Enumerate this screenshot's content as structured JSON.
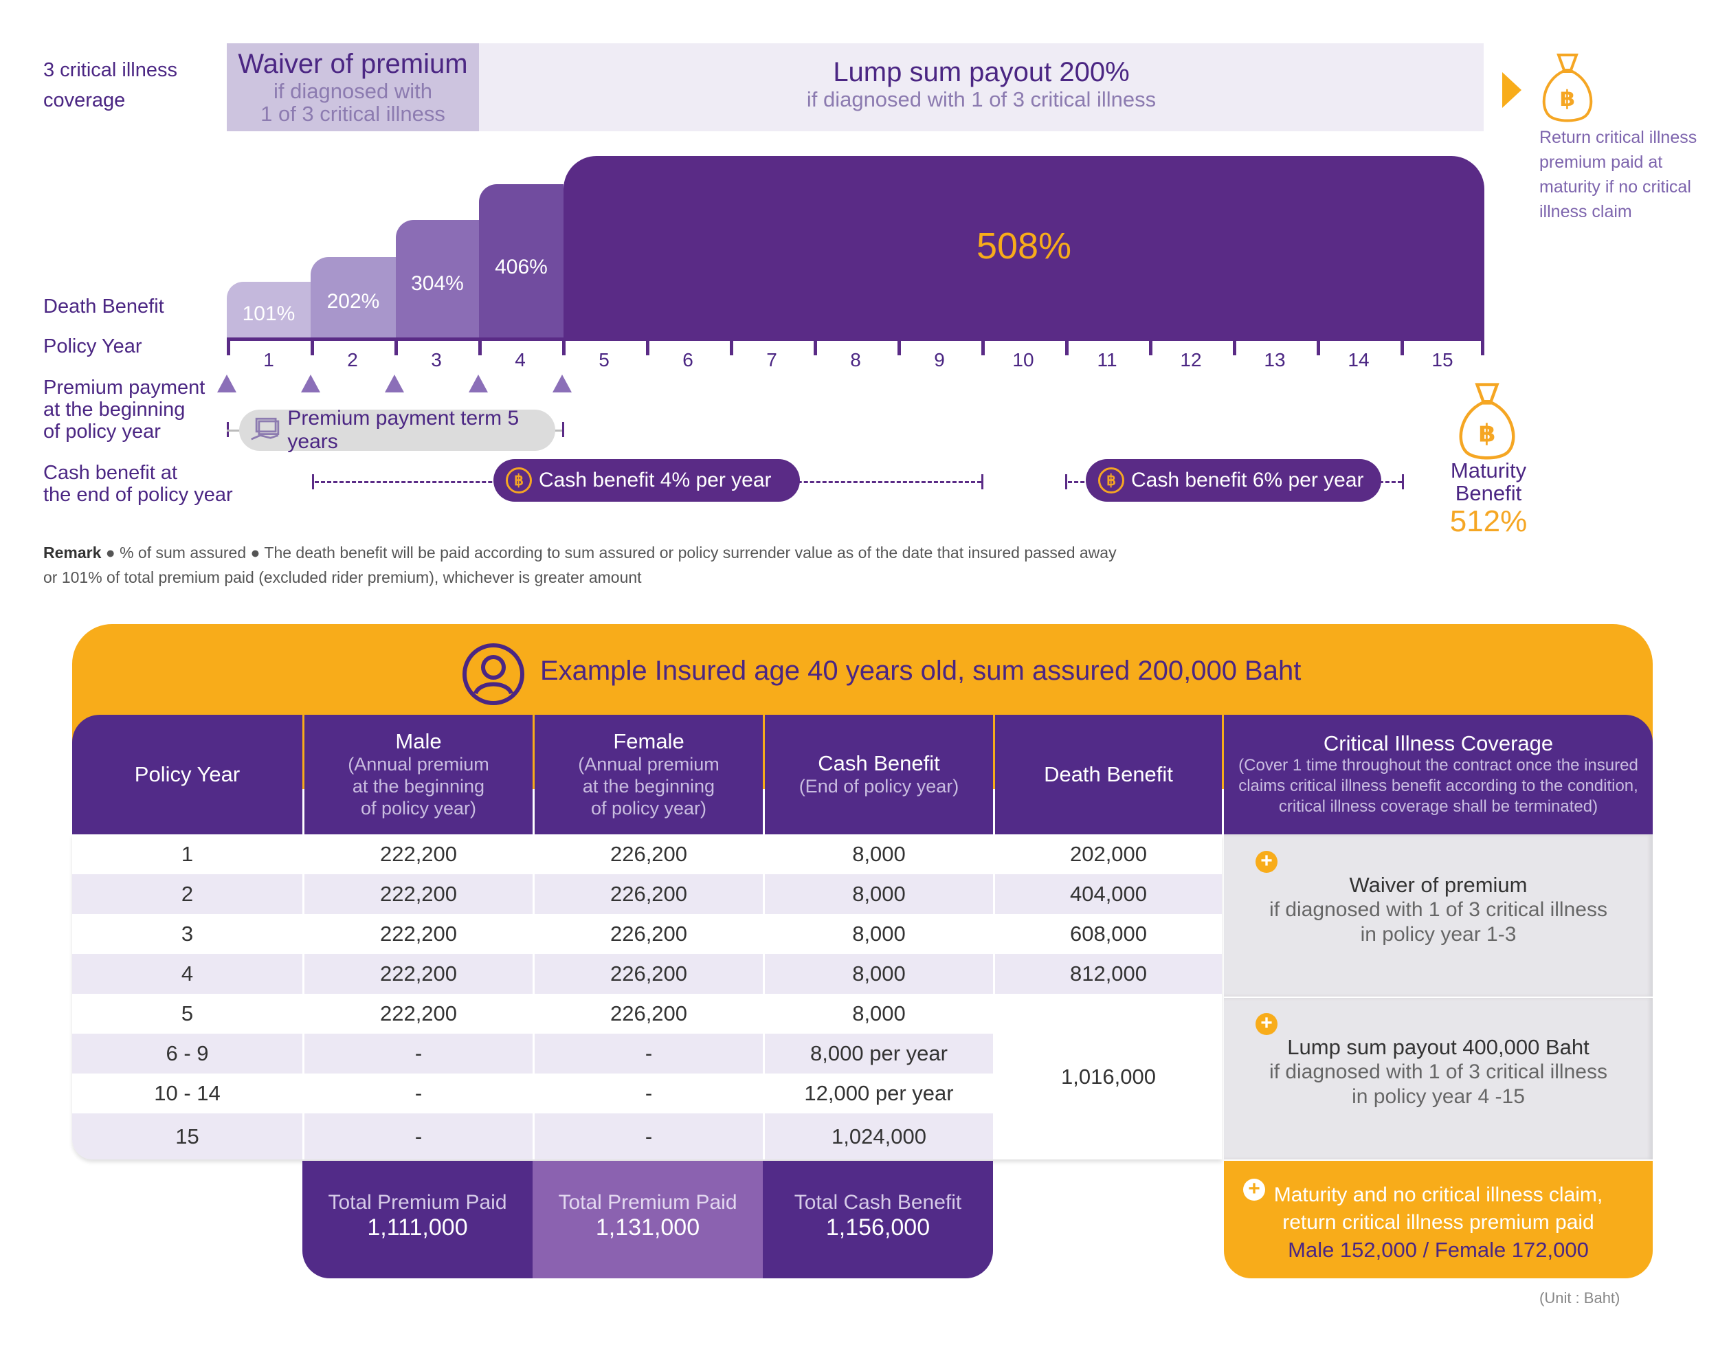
{
  "coverage": {
    "label": "3 critical illness coverage",
    "waiver_title": "Waiver of premium",
    "waiver_sub1": "if diagnosed with",
    "waiver_sub2": "1 of 3 critical illness",
    "lump_title": "Lump sum payout 200%",
    "lump_sub": "if diagnosed with 1 of 3 critical illness",
    "return_note": [
      "Return critical illness",
      "premium paid at",
      "maturity if no critical",
      "illness claim"
    ]
  },
  "death_benefit": {
    "label": "Death Benefit",
    "steps": [
      "101%",
      "202%",
      "304%",
      "406%",
      "508%"
    ]
  },
  "timeline": {
    "policy_year_label": "Policy Year",
    "years": [
      "1",
      "2",
      "3",
      "4",
      "5",
      "6",
      "7",
      "8",
      "9",
      "10",
      "11",
      "12",
      "13",
      "14",
      "15"
    ],
    "premium_label": [
      "Premium payment",
      "at the beginning",
      "of policy year"
    ],
    "premium_term": "Premium payment term 5 years",
    "cash_label": [
      "Cash benefit at",
      "the end of policy year"
    ],
    "cash_4": "Cash benefit 4% per year",
    "cash_6": "Cash benefit 6% per year",
    "maturity_label": [
      "Maturity",
      "Benefit"
    ],
    "maturity_value": "512%"
  },
  "remark": {
    "lead": "Remark",
    "line1": " ● % of sum assured ● The death benefit will be paid according to sum assured or policy surrender value as of the date that insured passed away",
    "line2": "or 101% of total premium paid (excluded rider premium), whichever is greater amount"
  },
  "example": {
    "title": "Example Insured age 40 years old, sum assured 200,000 Baht",
    "headers": {
      "policy_year": "Policy Year",
      "male": "Male",
      "male_sub": [
        "(Annual premium",
        "at the beginning",
        "of policy year)"
      ],
      "female": "Female",
      "female_sub": [
        "(Annual premium",
        "at the beginning",
        "of policy year)"
      ],
      "cash": "Cash Benefit",
      "cash_sub": "(End of policy year)",
      "death": "Death Benefit",
      "crit": "Critical Illness Coverage",
      "crit_sub": [
        "(Cover 1 time throughout the contract once the insured",
        "claims critical illness benefit according to the condition,",
        "critical illness coverage shall be terminated)"
      ]
    },
    "rows": [
      {
        "year": "1",
        "male": "222,200",
        "female": "226,200",
        "cash": "8,000",
        "death": "202,000"
      },
      {
        "year": "2",
        "male": "222,200",
        "female": "226,200",
        "cash": "8,000",
        "death": "404,000"
      },
      {
        "year": "3",
        "male": "222,200",
        "female": "226,200",
        "cash": "8,000",
        "death": "608,000"
      },
      {
        "year": "4",
        "male": "222,200",
        "female": "226,200",
        "cash": "8,000",
        "death": "812,000"
      },
      {
        "year": "5",
        "male": "222,200",
        "female": "226,200",
        "cash": "8,000",
        "death": ""
      },
      {
        "year": "6 - 9",
        "male": "-",
        "female": "-",
        "cash": "8,000 per year",
        "death": ""
      },
      {
        "year": "10 - 14",
        "male": "-",
        "female": "-",
        "cash": "12,000 per year",
        "death": ""
      },
      {
        "year": "15",
        "male": "-",
        "female": "-",
        "cash": "1,024,000",
        "death": ""
      }
    ],
    "death_merged": "1,016,000",
    "crit_box1": {
      "title": "Waiver of premium",
      "line1": "if diagnosed with 1 of 3 critical illness",
      "line2": "in policy year 1-3"
    },
    "crit_box2": {
      "title": "Lump sum payout 400,000 Baht",
      "line1": "if diagnosed with 1 of 3 critical illness",
      "line2": "in policy year 4 -15"
    },
    "crit_box3": {
      "line1": "Maturity and no critical illness claim,",
      "line2": "return critical illness premium paid",
      "line3": "Male 152,000 / Female 172,000"
    },
    "totals": {
      "male_label": "Total Premium Paid",
      "male_value": "1,111,000",
      "female_label": "Total Premium Paid",
      "female_value": "1,131,000",
      "cash_label": "Total Cash Benefit",
      "cash_value": "1,156,000"
    },
    "unit": "(Unit : Baht)"
  },
  "colors": {
    "purple": "#522b88",
    "light_purple": "#ad9ccd",
    "orange": "#f8ac1a",
    "gold_text": "#f5a623"
  }
}
